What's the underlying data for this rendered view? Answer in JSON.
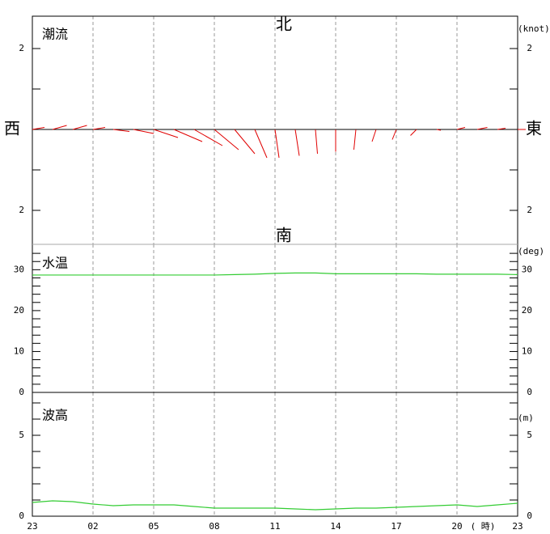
{
  "chart_data": [
    {
      "type": "vector",
      "title": "潮流",
      "unit_label": "(knot)",
      "north_label": "北",
      "south_label": "南",
      "west_label": "西",
      "east_label": "東",
      "ylim": [
        -2.84,
        2.8
      ],
      "yticks": [
        2,
        {
          "value": -2,
          "label": "2"
        }
      ],
      "minor_yticks": [
        1,
        0,
        -1
      ],
      "color": "#e00000",
      "series": [
        {
          "name": "east",
          "values": [
            0.3,
            0.35,
            0.35,
            0.3,
            0.4,
            0.5,
            0.6,
            0.7,
            0.7,
            0.6,
            0.5,
            0.3,
            0.1,
            0.1,
            0.05,
            0.0,
            -0.05,
            -0.1,
            -0.1,
            -0.15,
            0.1,
            0.2,
            0.25,
            0.2,
            0.2
          ]
        },
        {
          "name": "north",
          "values": [
            0.05,
            0.1,
            0.1,
            0.05,
            -0.05,
            -0.1,
            -0.2,
            -0.3,
            -0.4,
            -0.5,
            -0.6,
            -0.7,
            -0.7,
            -0.65,
            -0.6,
            -0.55,
            -0.5,
            -0.3,
            -0.25,
            -0.15,
            -0.02,
            0.05,
            0.05,
            0.03,
            0.0
          ]
        }
      ]
    },
    {
      "type": "line",
      "title": "水温",
      "unit_label": "(deg)",
      "ylim": [
        0,
        36.2
      ],
      "yticks": [
        0,
        10,
        20,
        30
      ],
      "minor_yticks": [
        2,
        4,
        6,
        8,
        12,
        14,
        16,
        18,
        22,
        24,
        26,
        28,
        32,
        34
      ],
      "color": "#33cc33",
      "values": [
        28.7,
        28.7,
        28.7,
        28.7,
        28.7,
        28.7,
        28.7,
        28.7,
        28.7,
        28.7,
        28.8,
        28.9,
        29.1,
        29.2,
        29.2,
        29.0,
        29.0,
        29.0,
        29.0,
        29.0,
        28.9,
        28.9,
        28.9,
        28.9,
        28.8
      ]
    },
    {
      "type": "line",
      "title": "波高",
      "unit_label": "(m)",
      "ylim": [
        0,
        7.65
      ],
      "yticks": [
        0,
        5
      ],
      "minor_yticks": [
        1,
        2,
        3,
        4,
        6,
        7
      ],
      "color": "#33cc33",
      "categories": [
        "23",
        null,
        null,
        "02",
        null,
        null,
        "05",
        null,
        null,
        "08",
        null,
        null,
        "11",
        null,
        null,
        "14",
        null,
        null,
        "17",
        null,
        null,
        "20",
        null,
        null,
        "23"
      ],
      "x_unit_label": "( 時)",
      "values": [
        0.85,
        0.95,
        0.9,
        0.75,
        0.65,
        0.7,
        0.7,
        0.7,
        0.6,
        0.5,
        0.5,
        0.5,
        0.5,
        0.45,
        0.4,
        0.45,
        0.5,
        0.5,
        0.55,
        0.6,
        0.65,
        0.7,
        0.6,
        0.7,
        0.8
      ]
    }
  ]
}
